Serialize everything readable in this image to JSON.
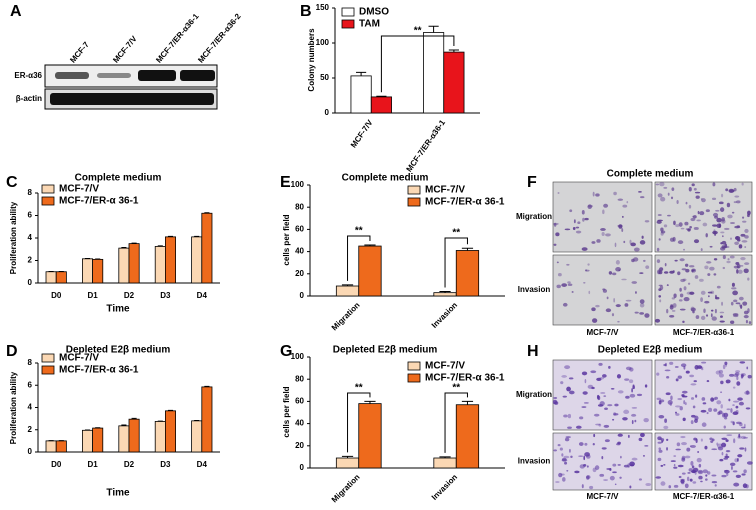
{
  "blot": {
    "panel_label": "A",
    "lanes": [
      "MCF-7",
      "MCF-7/V",
      "MCF-7/ER-α36-1",
      "MCF-7/ER-α36-2"
    ],
    "rows": [
      "ER-α36",
      "β-actin"
    ]
  },
  "chart_data": [
    {
      "type": "bar",
      "panel_label": "B",
      "y_label": "Colony numbers",
      "categories": [
        "MCF-7/V",
        "MCF-7/ER-α36-1"
      ],
      "ylim": [
        0,
        150
      ],
      "yticks": [
        0,
        50,
        100,
        150
      ],
      "legend": "upper left",
      "annotations": [
        "**"
      ],
      "series": [
        {
          "name": "DMSO",
          "color": "#ffffff",
          "values": [
            53,
            115
          ],
          "errors": [
            5,
            9
          ]
        },
        {
          "name": "TAM",
          "color": "#e8141b",
          "values": [
            23,
            87
          ],
          "errors": [
            1,
            3
          ]
        }
      ]
    },
    {
      "type": "bar",
      "panel_label": "C",
      "title": "Complete medium",
      "x_label": "Time",
      "y_label": "Proliferation ability",
      "categories": [
        "D0",
        "D1",
        "D2",
        "D3",
        "D4"
      ],
      "ylim": [
        0,
        8
      ],
      "yticks": [
        0,
        2,
        4,
        6,
        8
      ],
      "legend": "upper left",
      "series": [
        {
          "name": "MCF-7/V",
          "color": "#fbd8b4",
          "values": [
            1.0,
            2.15,
            3.1,
            3.25,
            4.1
          ],
          "errors": [
            0.02,
            0.03,
            0.06,
            0.05,
            0.05
          ]
        },
        {
          "name": "MCF-7/ER-α 36-1",
          "color": "#ee6a1c",
          "values": [
            1.0,
            2.1,
            3.5,
            4.1,
            6.2
          ],
          "errors": [
            0.02,
            0.03,
            0.05,
            0.05,
            0.04
          ]
        }
      ]
    },
    {
      "type": "bar",
      "panel_label": "D",
      "title": "Depleted E2β  medium",
      "x_label": "Time",
      "y_label": "Proliferation ability",
      "categories": [
        "D0",
        "D1",
        "D2",
        "D3",
        "D4"
      ],
      "ylim": [
        0,
        8
      ],
      "yticks": [
        0,
        2,
        4,
        6,
        8
      ],
      "legend": "upper left",
      "series": [
        {
          "name": "MCF-7/V",
          "color": "#fbd8b4",
          "values": [
            1.0,
            1.95,
            2.35,
            2.75,
            2.8
          ],
          "errors": [
            0.02,
            0.03,
            0.08,
            0.03,
            0.03
          ]
        },
        {
          "name": "MCF-7/ER-α 36-1",
          "color": "#ee6a1c",
          "values": [
            1.0,
            2.15,
            2.95,
            3.7,
            5.85
          ],
          "errors": [
            0.02,
            0.03,
            0.07,
            0.04,
            0.05
          ]
        }
      ]
    },
    {
      "type": "bar",
      "panel_label": "E",
      "title": "Complete medium",
      "y_label": "cells per field",
      "categories": [
        "Migration",
        "Invasion"
      ],
      "ylim": [
        0,
        100
      ],
      "yticks": [
        0,
        20,
        40,
        60,
        80,
        100
      ],
      "legend": "upper right",
      "annotations": [
        "**",
        "**"
      ],
      "series": [
        {
          "name": "MCF-7/V",
          "color": "#fbd8b4",
          "values": [
            9,
            3
          ],
          "errors": [
            1,
            1
          ]
        },
        {
          "name": "MCF-7/ER-α 36-1",
          "color": "#ee6a1c",
          "values": [
            45,
            41
          ],
          "errors": [
            1,
            2
          ]
        }
      ]
    },
    {
      "type": "bar",
      "panel_label": "G",
      "title": "Depleted E2β  medium",
      "y_label": "cells per field",
      "categories": [
        "Migration",
        "Invasion"
      ],
      "ylim": [
        0,
        100
      ],
      "yticks": [
        0,
        20,
        40,
        60,
        80,
        100
      ],
      "legend": "upper right",
      "annotations": [
        "**",
        "**"
      ],
      "series": [
        {
          "name": "MCF-7/V",
          "color": "#fbd8b4",
          "values": [
            9,
            9
          ],
          "errors": [
            1.5,
            1
          ]
        },
        {
          "name": "MCF-7/ER-α 36-1",
          "color": "#ee6a1c",
          "values": [
            58,
            57
          ],
          "errors": [
            2,
            3
          ]
        }
      ]
    }
  ],
  "micrographs": [
    {
      "panel_label": "F",
      "title": "Complete medium",
      "rows": [
        "Migration",
        "Invasion"
      ],
      "columns": [
        "MCF-7/V",
        "MCF-7/ER-α36-1"
      ]
    },
    {
      "panel_label": "H",
      "title": "Depleted E2β medium",
      "rows": [
        "Migration",
        "Invasion"
      ],
      "columns": [
        "MCF-7/V",
        "MCF-7/ER-α36-1"
      ]
    }
  ]
}
